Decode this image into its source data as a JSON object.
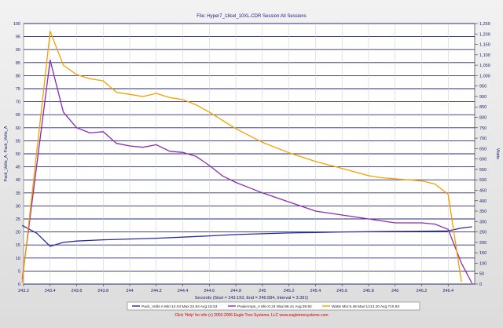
{
  "header": {
    "title": "File: Hyper7_18cel_10XL.CDR    Session:All Sessions"
  },
  "footer": {
    "credit": "Click 'Help' for info  (c) 2003-2006 Eagle Tree Systems, LLC   www.eagletreesystems.com"
  },
  "colors": {
    "volts": "#2a2aa0",
    "amps": "#8a2bb0",
    "watts": "#f5a000",
    "grid": "#2a2a70",
    "plot_bg": "#ffffff",
    "credit": "#cc0000"
  },
  "chart_data": {
    "type": "line",
    "title": "File: Hyper7_18cel_10XL.CDR    Session:All Sessions",
    "xlabel": "Seconds (Start = 243.193, End = 246.584, Interval = 3.391)",
    "ylabel_left": "Pack_Volts_A, Pack_Volts_A",
    "ylabel_right": "Watts",
    "xlim": [
      243.2,
      246.6
    ],
    "ylim_left": [
      0,
      100
    ],
    "ylim_right": [
      0,
      1250
    ],
    "grid": true,
    "x_ticks": [
      "243.2",
      "243.4",
      "243.6",
      "243.8",
      "244",
      "244.2",
      "244.4",
      "244.6",
      "244.8",
      "245",
      "245.2",
      "245.4",
      "245.6",
      "245.8",
      "246",
      "246.2",
      "246.4"
    ],
    "left_ticks": [
      "0",
      "5",
      "10",
      "15",
      "20",
      "25",
      "30",
      "35",
      "40",
      "45",
      "50",
      "55",
      "60",
      "65",
      "70",
      "75",
      "80",
      "85",
      "90",
      "95",
      "100"
    ],
    "right_ticks": [
      "0",
      "50",
      "100",
      "150",
      "200",
      "250",
      "300",
      "350",
      "400",
      "450",
      "500",
      "550",
      "600",
      "650",
      "700",
      "750",
      "800",
      "850",
      "900",
      "950",
      "1,000",
      "1,050",
      "1,100",
      "1,150",
      "1,200",
      "1,250"
    ],
    "legend": {
      "placement": "bottom",
      "entries": [
        {
          "text": "Pack_Volts A    Min:14.04    Max:22.84    Avg:18.53"
        },
        {
          "text": "PeakAmps_A    Min:0.24    Max:86.41    Avg:39.82"
        },
        {
          "text": "Watts    Min:5.48    Max:1213.20    Avg:710.93"
        }
      ]
    },
    "series": [
      {
        "name": "Pack_Volts A",
        "axis": "left",
        "x": [
          243.19,
          243.3,
          243.4,
          243.5,
          243.6,
          243.8,
          244,
          244.2,
          244.4,
          244.6,
          244.8,
          245,
          245.2,
          245.4,
          245.6,
          245.8,
          246,
          246.2,
          246.4,
          246.5,
          246.58
        ],
        "values": [
          22.5,
          19.5,
          14.5,
          16.0,
          16.5,
          17.0,
          17.3,
          17.6,
          18.0,
          18.5,
          19.0,
          19.3,
          19.6,
          19.8,
          20.0,
          20.1,
          20.2,
          20.3,
          20.4,
          21.5,
          22.0
        ]
      },
      {
        "name": "PeakAmps_A",
        "axis": "left",
        "x": [
          243.19,
          243.4,
          243.5,
          243.6,
          243.7,
          243.8,
          243.9,
          244,
          244.1,
          244.2,
          244.3,
          244.4,
          244.5,
          244.6,
          244.7,
          244.8,
          244.9,
          245,
          245.2,
          245.4,
          245.6,
          245.8,
          246,
          246.2,
          246.3,
          246.4,
          246.5,
          246.58
        ],
        "values": [
          2,
          86,
          66,
          60,
          58,
          58.5,
          54,
          53,
          52.5,
          53.5,
          51,
          50.5,
          49,
          45.5,
          41.5,
          39,
          37,
          35,
          31.5,
          28,
          26.5,
          25,
          23.5,
          23.5,
          23,
          21,
          8,
          0.3
        ]
      },
      {
        "name": "Watts",
        "axis": "right",
        "x": [
          243.19,
          243.4,
          243.5,
          243.6,
          243.7,
          243.8,
          243.9,
          244,
          244.1,
          244.2,
          244.3,
          244.4,
          244.5,
          244.6,
          244.8,
          245,
          245.2,
          245.4,
          245.6,
          245.8,
          245.9,
          246,
          246.1,
          246.2,
          246.3,
          246.4,
          246.5
        ],
        "values": [
          8,
          1213,
          1050,
          1005,
          985,
          975,
          920,
          910,
          900,
          915,
          895,
          885,
          860,
          825,
          745,
          680,
          630,
          588,
          555,
          520,
          510,
          505,
          500,
          495,
          480,
          430,
          10
        ]
      }
    ]
  }
}
